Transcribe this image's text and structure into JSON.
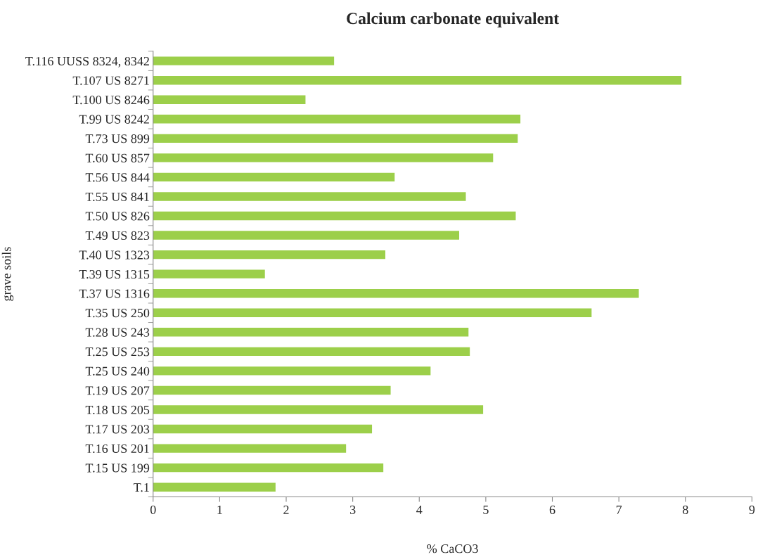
{
  "chart_data": {
    "type": "bar",
    "orientation": "horizontal",
    "title": "Calcium carbonate equivalent",
    "xlabel": "% CaCO3",
    "ylabel": "grave soils",
    "categories": [
      "T.116 UUSS 8324, 8342",
      "T.107 US 8271",
      "T.100 US 8246",
      "T.99 US 8242",
      "T.73 US 899",
      "T.60 US 857",
      "T.56 US 844",
      "T.55 US 841",
      "T.50 US 826",
      "T.49 US 823",
      "T.40 US 1323",
      "T.39 US 1315",
      "T.37 US 1316",
      "T.35 US 250",
      "T.28 US 243",
      "T.25 US 253",
      "T.25 US 240",
      "T.19 US 207",
      "T.18 US 205",
      "T.17 US 203",
      "T.16 US 201",
      "T.15 US 199",
      "T.1"
    ],
    "values": [
      2.72,
      7.94,
      2.29,
      5.52,
      5.48,
      5.11,
      3.63,
      4.7,
      5.45,
      4.6,
      3.49,
      1.68,
      7.3,
      6.59,
      4.74,
      4.76,
      4.17,
      3.57,
      4.96,
      3.29,
      2.9,
      3.46,
      1.84
    ],
    "color": "#9ccf4a",
    "xlim": [
      0,
      9
    ],
    "xticks": [
      0,
      1,
      2,
      3,
      4,
      5,
      6,
      7,
      8,
      9
    ],
    "grid": false,
    "legend": false
  }
}
